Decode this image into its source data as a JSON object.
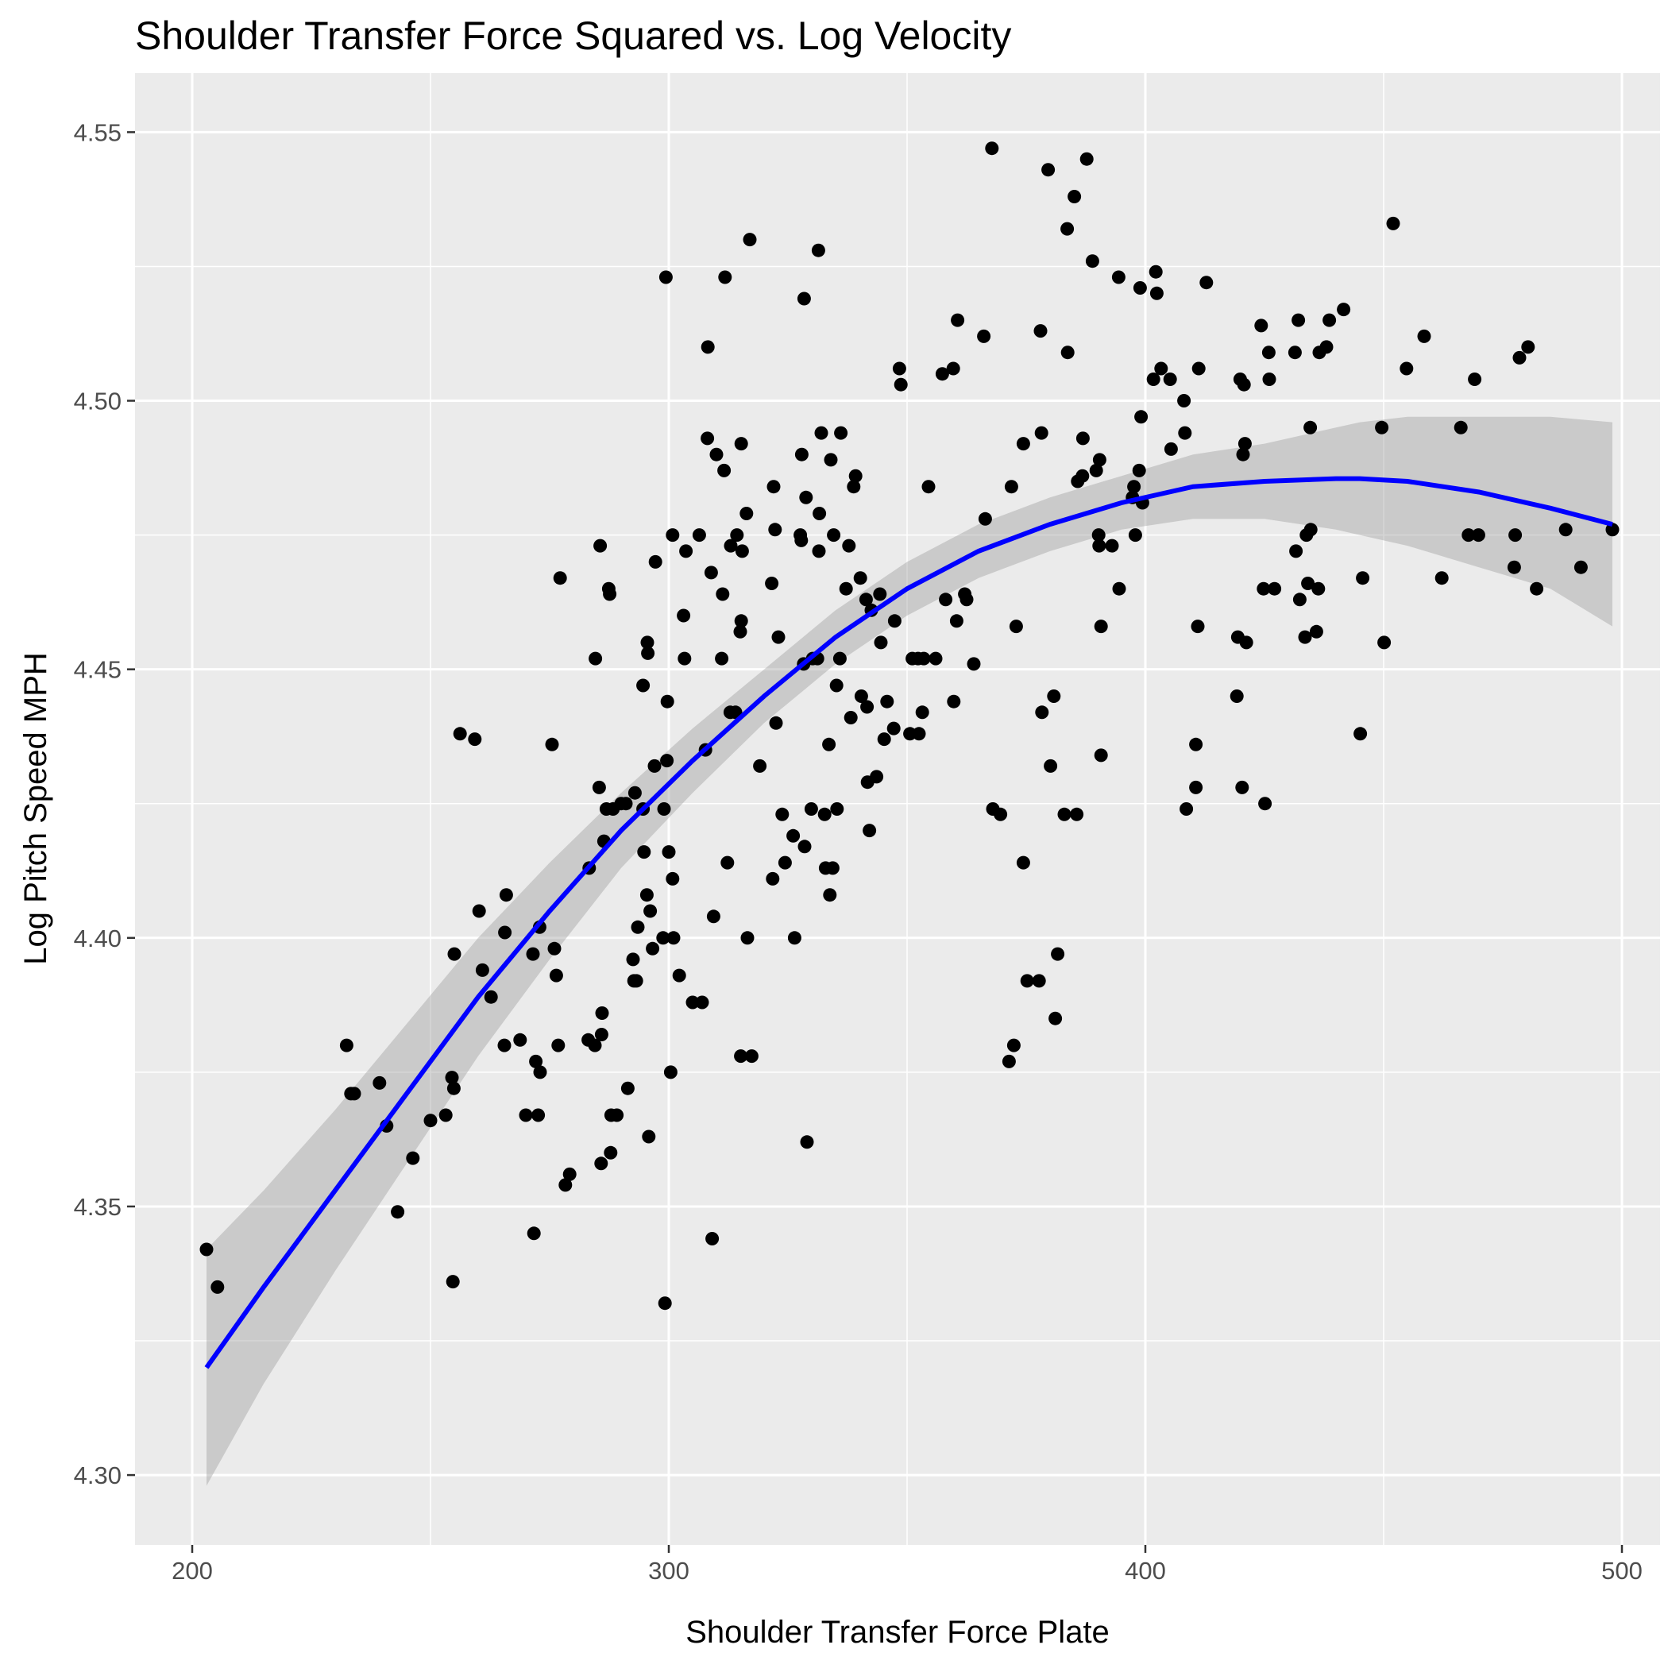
{
  "chart_data": {
    "type": "scatter",
    "title": "Shoulder Transfer Force Squared vs. Log Velocity",
    "xlabel": "Shoulder Transfer Force Plate",
    "ylabel": "Log Pitch Speed MPH",
    "xlim": [
      188,
      508
    ],
    "ylim": [
      4.287,
      4.561
    ],
    "x_ticks": [
      200,
      300,
      400,
      500
    ],
    "x_tick_labels": [
      "200",
      "300",
      "400",
      "500"
    ],
    "y_ticks": [
      4.3,
      4.35,
      4.4,
      4.45,
      4.5,
      4.55
    ],
    "y_tick_labels": [
      "4.30",
      "4.35",
      "4.40",
      "4.45",
      "4.50",
      "4.55"
    ],
    "grid": true,
    "legend": "none",
    "colors": {
      "points": "#000000",
      "fit_line": "#0000ff",
      "confidence_band": "#999999",
      "panel": "#ebebeb"
    },
    "points": [
      [
        203.0,
        4.342
      ],
      [
        205.3,
        4.335
      ],
      [
        232.4,
        4.38
      ],
      [
        233.3,
        4.371
      ],
      [
        234.0,
        4.371
      ],
      [
        239.3,
        4.373
      ],
      [
        240.8,
        4.365
      ],
      [
        243.1,
        4.349
      ],
      [
        246.3,
        4.359
      ],
      [
        250.0,
        4.366
      ],
      [
        253.2,
        4.367
      ],
      [
        254.5,
        4.374
      ],
      [
        254.7,
        4.336
      ],
      [
        254.9,
        4.372
      ],
      [
        255.0,
        4.397
      ],
      [
        256.2,
        4.438
      ],
      [
        259.3,
        4.437
      ],
      [
        260.2,
        4.405
      ],
      [
        260.9,
        4.394
      ],
      [
        262.7,
        4.389
      ],
      [
        265.5,
        4.38
      ],
      [
        265.6,
        4.401
      ],
      [
        265.9,
        4.408
      ],
      [
        268.8,
        4.381
      ],
      [
        270.0,
        4.367
      ],
      [
        271.5,
        4.397
      ],
      [
        271.7,
        4.345
      ],
      [
        272.1,
        4.377
      ],
      [
        272.6,
        4.367
      ],
      [
        272.9,
        4.402
      ],
      [
        273.0,
        4.375
      ],
      [
        275.5,
        4.436
      ],
      [
        276.0,
        4.398
      ],
      [
        276.4,
        4.393
      ],
      [
        276.8,
        4.38
      ],
      [
        277.2,
        4.467
      ],
      [
        278.3,
        4.354
      ],
      [
        279.2,
        4.356
      ],
      [
        283.1,
        4.381
      ],
      [
        283.3,
        4.413
      ],
      [
        284.5,
        4.38
      ],
      [
        284.6,
        4.452
      ],
      [
        285.4,
        4.428
      ],
      [
        285.6,
        4.473
      ],
      [
        285.8,
        4.358
      ],
      [
        285.9,
        4.382
      ],
      [
        286.0,
        4.386
      ],
      [
        286.4,
        4.418
      ],
      [
        286.9,
        4.424
      ],
      [
        287.4,
        4.465
      ],
      [
        287.6,
        4.464
      ],
      [
        287.8,
        4.36
      ],
      [
        287.9,
        4.367
      ],
      [
        288.3,
        4.424
      ],
      [
        289.1,
        4.367
      ],
      [
        290.0,
        4.425
      ],
      [
        291.0,
        4.425
      ],
      [
        291.4,
        4.372
      ],
      [
        292.5,
        4.396
      ],
      [
        292.7,
        4.392
      ],
      [
        292.9,
        4.427
      ],
      [
        293.2,
        4.392
      ],
      [
        293.5,
        4.402
      ],
      [
        294.6,
        4.424
      ],
      [
        294.6,
        4.447
      ],
      [
        294.8,
        4.416
      ],
      [
        295.4,
        4.408
      ],
      [
        295.5,
        4.455
      ],
      [
        295.6,
        4.453
      ],
      [
        295.8,
        4.363
      ],
      [
        296.1,
        4.405
      ],
      [
        296.6,
        4.398
      ],
      [
        297.0,
        4.432
      ],
      [
        297.2,
        4.47
      ],
      [
        298.8,
        4.4
      ],
      [
        299.0,
        4.424
      ],
      [
        299.2,
        4.332
      ],
      [
        299.4,
        4.523
      ],
      [
        299.6,
        4.433
      ],
      [
        299.7,
        4.444
      ],
      [
        300.0,
        4.416
      ],
      [
        300.4,
        4.375
      ],
      [
        300.8,
        4.411
      ],
      [
        300.8,
        4.475
      ],
      [
        301.0,
        4.4
      ],
      [
        302.2,
        4.393
      ],
      [
        303.1,
        4.46
      ],
      [
        303.3,
        4.452
      ],
      [
        303.6,
        4.472
      ],
      [
        305.0,
        4.388
      ],
      [
        306.4,
        4.475
      ],
      [
        307.0,
        4.388
      ],
      [
        307.7,
        4.435
      ],
      [
        308.1,
        4.493
      ],
      [
        308.2,
        4.51
      ],
      [
        308.9,
        4.468
      ],
      [
        309.1,
        4.344
      ],
      [
        309.4,
        4.404
      ],
      [
        310.0,
        4.49
      ],
      [
        311.1,
        4.452
      ],
      [
        311.3,
        4.464
      ],
      [
        311.6,
        4.487
      ],
      [
        311.8,
        4.523
      ],
      [
        312.3,
        4.414
      ],
      [
        312.9,
        4.442
      ],
      [
        313.0,
        4.473
      ],
      [
        314.0,
        4.442
      ],
      [
        314.3,
        4.475
      ],
      [
        315.0,
        4.457
      ],
      [
        315.1,
        4.378
      ],
      [
        315.2,
        4.459
      ],
      [
        315.2,
        4.492
      ],
      [
        315.4,
        4.472
      ],
      [
        316.3,
        4.479
      ],
      [
        316.5,
        4.4
      ],
      [
        317.0,
        4.53
      ],
      [
        317.4,
        4.378
      ],
      [
        319.1,
        4.432
      ],
      [
        321.6,
        4.466
      ],
      [
        321.8,
        4.411
      ],
      [
        322.0,
        4.484
      ],
      [
        322.3,
        4.476
      ],
      [
        322.5,
        4.44
      ],
      [
        323.0,
        4.456
      ],
      [
        323.8,
        4.423
      ],
      [
        324.4,
        4.414
      ],
      [
        326.1,
        4.419
      ],
      [
        326.4,
        4.4
      ],
      [
        327.6,
        4.475
      ],
      [
        327.8,
        4.474
      ],
      [
        327.9,
        4.49
      ],
      [
        328.3,
        4.451
      ],
      [
        328.4,
        4.519
      ],
      [
        328.5,
        4.417
      ],
      [
        328.8,
        4.482
      ],
      [
        329.0,
        4.362
      ],
      [
        329.9,
        4.424
      ],
      [
        330.2,
        4.452
      ],
      [
        331.2,
        4.452
      ],
      [
        331.4,
        4.528
      ],
      [
        331.5,
        4.472
      ],
      [
        331.6,
        4.479
      ],
      [
        332.0,
        4.494
      ],
      [
        332.7,
        4.423
      ],
      [
        332.9,
        4.413
      ],
      [
        333.6,
        4.436
      ],
      [
        333.8,
        4.408
      ],
      [
        334.0,
        4.489
      ],
      [
        334.4,
        4.413
      ],
      [
        334.6,
        4.475
      ],
      [
        335.2,
        4.447
      ],
      [
        335.3,
        4.424
      ],
      [
        335.9,
        4.452
      ],
      [
        336.1,
        4.494
      ],
      [
        337.2,
        4.465
      ],
      [
        337.8,
        4.473
      ],
      [
        338.2,
        4.441
      ],
      [
        338.8,
        4.484
      ],
      [
        339.2,
        4.486
      ],
      [
        340.2,
        4.467
      ],
      [
        340.4,
        4.445
      ],
      [
        341.4,
        4.463
      ],
      [
        341.6,
        4.443
      ],
      [
        341.7,
        4.429
      ],
      [
        342.1,
        4.42
      ],
      [
        342.5,
        4.461
      ],
      [
        343.6,
        4.43
      ],
      [
        344.3,
        4.464
      ],
      [
        344.5,
        4.455
      ],
      [
        345.2,
        4.437
      ],
      [
        345.8,
        4.444
      ],
      [
        347.2,
        4.439
      ],
      [
        347.4,
        4.459
      ],
      [
        348.4,
        4.506
      ],
      [
        348.7,
        4.503
      ],
      [
        350.6,
        4.438
      ],
      [
        351.1,
        4.452
      ],
      [
        352.3,
        4.452
      ],
      [
        352.5,
        4.438
      ],
      [
        353.2,
        4.442
      ],
      [
        353.5,
        4.452
      ],
      [
        354.5,
        4.484
      ],
      [
        356.0,
        4.452
      ],
      [
        357.4,
        4.505
      ],
      [
        358.1,
        4.463
      ],
      [
        359.7,
        4.506
      ],
      [
        359.8,
        4.444
      ],
      [
        360.4,
        4.459
      ],
      [
        360.6,
        4.515
      ],
      [
        362.1,
        4.464
      ],
      [
        362.5,
        4.463
      ],
      [
        364.0,
        4.451
      ],
      [
        366.1,
        4.512
      ],
      [
        366.4,
        4.478
      ],
      [
        367.8,
        4.547
      ],
      [
        368.0,
        4.424
      ],
      [
        369.6,
        4.423
      ],
      [
        371.4,
        4.377
      ],
      [
        371.9,
        4.484
      ],
      [
        372.4,
        4.38
      ],
      [
        372.9,
        4.458
      ],
      [
        374.4,
        4.492
      ],
      [
        374.4,
        4.414
      ],
      [
        375.2,
        4.392
      ],
      [
        377.7,
        4.392
      ],
      [
        378.0,
        4.513
      ],
      [
        378.2,
        4.494
      ],
      [
        378.3,
        4.442
      ],
      [
        379.6,
        4.543
      ],
      [
        380.1,
        4.432
      ],
      [
        380.8,
        4.445
      ],
      [
        381.1,
        4.385
      ],
      [
        381.6,
        4.397
      ],
      [
        383.0,
        4.423
      ],
      [
        383.6,
        4.532
      ],
      [
        383.7,
        4.509
      ],
      [
        385.1,
        4.538
      ],
      [
        385.6,
        4.423
      ],
      [
        385.8,
        4.485
      ],
      [
        386.8,
        4.486
      ],
      [
        386.9,
        4.493
      ],
      [
        387.7,
        4.545
      ],
      [
        388.9,
        4.526
      ],
      [
        389.7,
        4.487
      ],
      [
        390.2,
        4.475
      ],
      [
        390.3,
        4.473
      ],
      [
        390.4,
        4.489
      ],
      [
        390.7,
        4.458
      ],
      [
        390.7,
        4.434
      ],
      [
        393.0,
        4.473
      ],
      [
        394.4,
        4.523
      ],
      [
        394.5,
        4.465
      ],
      [
        397.3,
        4.482
      ],
      [
        397.6,
        4.484
      ],
      [
        397.9,
        4.475
      ],
      [
        398.7,
        4.487
      ],
      [
        398.9,
        4.521
      ],
      [
        399.1,
        4.497
      ],
      [
        399.4,
        4.481
      ],
      [
        401.7,
        4.504
      ],
      [
        402.2,
        4.524
      ],
      [
        402.4,
        4.52
      ],
      [
        403.3,
        4.506
      ],
      [
        405.2,
        4.504
      ],
      [
        405.4,
        4.491
      ],
      [
        408.1,
        4.5
      ],
      [
        408.3,
        4.494
      ],
      [
        408.6,
        4.424
      ],
      [
        410.6,
        4.436
      ],
      [
        410.6,
        4.428
      ],
      [
        411.0,
        4.458
      ],
      [
        411.2,
        4.506
      ],
      [
        412.8,
        4.522
      ],
      [
        419.2,
        4.445
      ],
      [
        419.4,
        4.456
      ],
      [
        419.9,
        4.504
      ],
      [
        420.3,
        4.428
      ],
      [
        420.5,
        4.49
      ],
      [
        420.7,
        4.503
      ],
      [
        420.9,
        4.492
      ],
      [
        421.2,
        4.455
      ],
      [
        424.3,
        4.514
      ],
      [
        424.8,
        4.465
      ],
      [
        425.1,
        4.425
      ],
      [
        425.9,
        4.509
      ],
      [
        426.0,
        4.504
      ],
      [
        427.1,
        4.465
      ],
      [
        431.4,
        4.509
      ],
      [
        431.6,
        4.472
      ],
      [
        432.1,
        4.515
      ],
      [
        432.4,
        4.463
      ],
      [
        433.5,
        4.456
      ],
      [
        433.8,
        4.475
      ],
      [
        434.1,
        4.466
      ],
      [
        434.6,
        4.495
      ],
      [
        434.7,
        4.476
      ],
      [
        435.9,
        4.457
      ],
      [
        436.3,
        4.465
      ],
      [
        436.5,
        4.509
      ],
      [
        438.0,
        4.51
      ],
      [
        438.6,
        4.515
      ],
      [
        441.6,
        4.517
      ],
      [
        445.1,
        4.438
      ],
      [
        445.6,
        4.467
      ],
      [
        449.6,
        4.495
      ],
      [
        450.1,
        4.455
      ],
      [
        452.0,
        4.533
      ],
      [
        454.8,
        4.506
      ],
      [
        458.5,
        4.512
      ],
      [
        462.2,
        4.467
      ],
      [
        466.2,
        4.495
      ],
      [
        467.8,
        4.475
      ],
      [
        469.1,
        4.504
      ],
      [
        469.9,
        4.475
      ],
      [
        477.4,
        4.469
      ],
      [
        477.6,
        4.475
      ],
      [
        478.5,
        4.508
      ],
      [
        480.3,
        4.51
      ],
      [
        482.1,
        4.465
      ],
      [
        488.2,
        4.476
      ],
      [
        491.4,
        4.469
      ],
      [
        498.0,
        4.476
      ]
    ],
    "fit_line": {
      "method": "quadratic",
      "x": [
        203,
        215,
        230,
        245,
        260,
        275,
        290,
        305,
        320,
        335,
        350,
        365,
        380,
        395,
        410,
        425,
        440,
        445,
        455,
        470,
        485,
        498
      ],
      "y": [
        4.32,
        4.335,
        4.353,
        4.371,
        4.389,
        4.405,
        4.42,
        4.433,
        4.445,
        4.456,
        4.465,
        4.472,
        4.477,
        4.481,
        4.484,
        4.485,
        4.4855,
        4.4855,
        4.485,
        4.483,
        4.48,
        4.477
      ],
      "ci_lower": [
        4.298,
        4.317,
        4.338,
        4.358,
        4.378,
        4.396,
        4.413,
        4.427,
        4.44,
        4.451,
        4.46,
        4.467,
        4.472,
        4.476,
        4.478,
        4.478,
        4.476,
        4.475,
        4.473,
        4.469,
        4.465,
        4.458
      ],
      "ci_upper": [
        4.342,
        4.353,
        4.368,
        4.384,
        4.4,
        4.414,
        4.427,
        4.439,
        4.45,
        4.461,
        4.47,
        4.477,
        4.482,
        4.486,
        4.49,
        4.492,
        4.495,
        4.496,
        4.497,
        4.497,
        4.497,
        4.496
      ]
    }
  }
}
